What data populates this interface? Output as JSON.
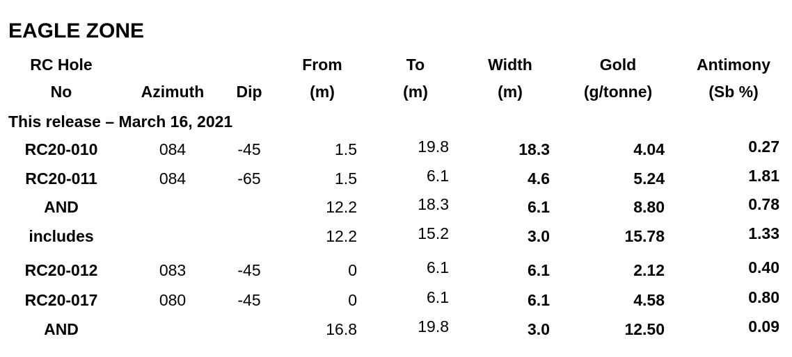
{
  "title": "EAGLE ZONE",
  "table": {
    "columns": [
      {
        "key": "hole",
        "lines": [
          "RC Hole",
          "No"
        ]
      },
      {
        "key": "azimuth",
        "lines": [
          "Azimuth"
        ]
      },
      {
        "key": "dip",
        "lines": [
          "Dip"
        ]
      },
      {
        "key": "from",
        "lines": [
          "From",
          "(m)"
        ]
      },
      {
        "key": "to",
        "lines": [
          "To",
          "(m)"
        ]
      },
      {
        "key": "width",
        "lines": [
          "Width",
          "(m)"
        ]
      },
      {
        "key": "gold",
        "lines": [
          "Gold",
          "(g/tonne)"
        ]
      },
      {
        "key": "antimony",
        "lines": [
          "Antimony",
          "(Sb %)"
        ]
      }
    ],
    "section": "This release – March 16, 2021",
    "rows": [
      {
        "hole": "RC20-010",
        "azimuth": "084",
        "dip": "-45",
        "from": "1.5",
        "to": "19.8",
        "width": "18.3",
        "gold": "4.04",
        "antimony": "0.27"
      },
      {
        "hole": "RC20-011",
        "azimuth": "084",
        "dip": "-65",
        "from": "1.5",
        "to": "6.1",
        "width": "4.6",
        "gold": "5.24",
        "antimony": "1.81"
      },
      {
        "hole": "AND",
        "from": "12.2",
        "to": "18.3",
        "width": "6.1",
        "gold": "8.80",
        "antimony": "0.78"
      },
      {
        "hole": "includes",
        "from": "12.2",
        "to": "15.2",
        "width": "3.0",
        "gold": "15.78",
        "antimony": "1.33"
      },
      {
        "hole": "RC20-012",
        "azimuth": "083",
        "dip": "-45",
        "from": "0",
        "to": "6.1",
        "width": "6.1",
        "gold": "2.12",
        "antimony": "0.40"
      },
      {
        "hole": "RC20-017",
        "azimuth": "080",
        "dip": "-45",
        "from": "0",
        "to": "6.1",
        "width": "6.1",
        "gold": "4.58",
        "antimony": "0.80"
      },
      {
        "hole": "AND",
        "from": "16.8",
        "to": "19.8",
        "width": "3.0",
        "gold": "12.50",
        "antimony": "0.09"
      }
    ]
  }
}
